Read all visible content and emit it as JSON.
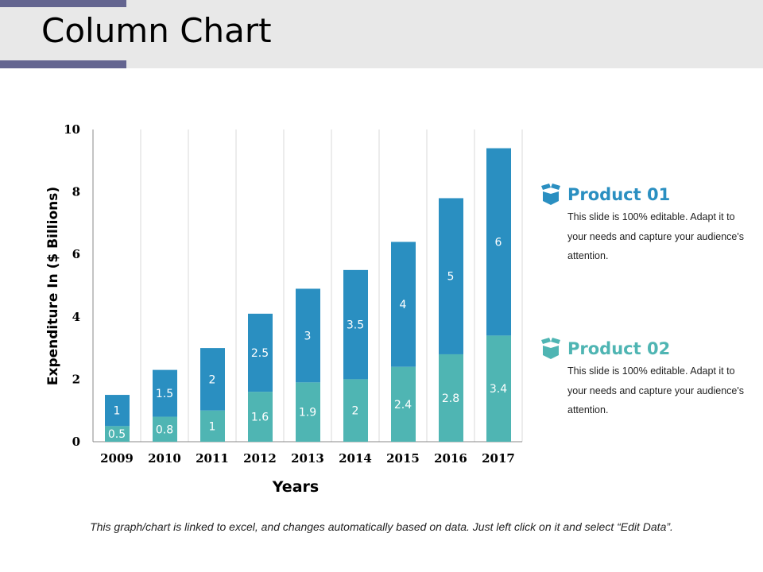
{
  "title": "Column Chart",
  "colors": {
    "product_01": "#2a8fc1",
    "product_02": "#4fb5b3",
    "header_accent": "#646590"
  },
  "chart_data": {
    "type": "bar",
    "stacked": true,
    "categories": [
      "2009",
      "2010",
      "2011",
      "2012",
      "2013",
      "2014",
      "2015",
      "2016",
      "2017"
    ],
    "series": [
      {
        "name": "Product 02",
        "values": [
          0.5,
          0.8,
          1,
          1.6,
          1.9,
          2,
          2.4,
          2.8,
          3.4
        ]
      },
      {
        "name": "Product 01",
        "values": [
          1,
          1.5,
          2,
          2.5,
          3,
          3.5,
          4,
          5,
          6
        ]
      }
    ],
    "xlabel": "Years",
    "ylabel": "Expenditure In ($ Billions)",
    "ylim": [
      0,
      10
    ],
    "yticks": [
      0,
      2,
      4,
      6,
      8,
      10
    ],
    "grid": "vertical",
    "legend": "right"
  },
  "legend": [
    {
      "name": "Product 01",
      "icon": "box-icon",
      "desc": "This slide is 100% editable. Adapt it to your needs and capture your audience's attention."
    },
    {
      "name": "Product 02",
      "icon": "box-icon",
      "desc": "This slide is 100% editable. Adapt it to your needs and capture your audience's attention."
    }
  ],
  "footer": "This graph/chart is linked to excel, and changes automatically based on data. Just left click on it and select “Edit Data”."
}
